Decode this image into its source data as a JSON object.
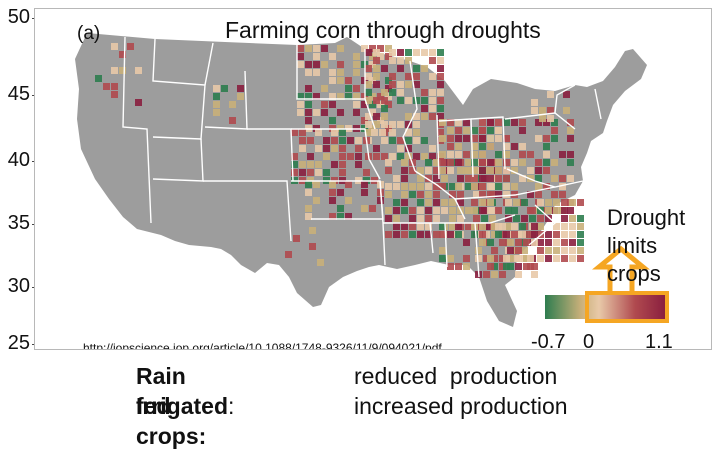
{
  "panel_label": "(a)",
  "title": "Farming corn through droughts",
  "y_axis": {
    "ticks": [
      "50",
      "45",
      "40",
      "35",
      "30",
      "25"
    ]
  },
  "annotation": {
    "line1": "Drought",
    "line2": "limits crops"
  },
  "source_url": "http://iopscience.iop.org/article/10.1088/1748-9326/11/9/094021/pdf",
  "colorbar": {
    "min_label": "-0.7",
    "zero_label": "0",
    "max_label": "1.1",
    "colors": [
      "#2e7d4f",
      "#c9b07a",
      "#e8c9a8",
      "#b04a4f",
      "#8a1f3f"
    ],
    "highlight_color": "#f5a623"
  },
  "legend": {
    "rain_fed_key": "Rain fed crops:",
    "rain_fed_value": "reduced  production",
    "irrigated_key": "Irrigated",
    "irrigated_colon": ":",
    "irrigated_value": "increased production"
  },
  "colors": {
    "land": "#9d9d9d",
    "state_border": "#ffffff",
    "arrow": "#f5a623"
  }
}
